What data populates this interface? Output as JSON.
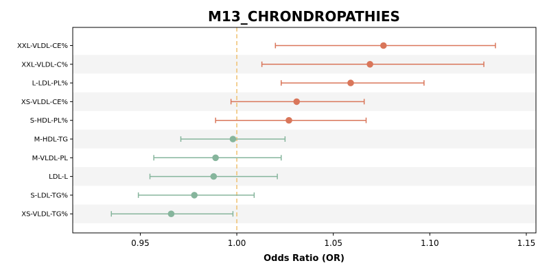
{
  "chart_data": {
    "type": "forest",
    "title": "M13_CHRONDROPATHIES",
    "xlabel": "Odds Ratio (OR)",
    "ylabel": "",
    "xlim": [
      0.915,
      1.155
    ],
    "xticks": [
      "0.95",
      "1.00",
      "1.05",
      "1.10",
      "1.15"
    ],
    "xtick_values": [
      0.95,
      1.0,
      1.05,
      1.1,
      1.15
    ],
    "reference_line": 1.0,
    "reference_color": "#f0c070",
    "colors": {
      "increased": "#d9765a",
      "decreased": "#86b59c",
      "band": "#f4f4f4"
    },
    "grid": false,
    "rows": [
      {
        "label": "XXL-VLDL-CE%",
        "or": 1.076,
        "lower": 1.02,
        "upper": 1.134
      },
      {
        "label": "XXL-VLDL-C%",
        "or": 1.069,
        "lower": 1.013,
        "upper": 1.128
      },
      {
        "label": "L-LDL-PL%",
        "or": 1.059,
        "lower": 1.023,
        "upper": 1.097
      },
      {
        "label": "XS-VLDL-CE%",
        "or": 1.031,
        "lower": 0.997,
        "upper": 1.066
      },
      {
        "label": "S-HDL-PL%",
        "or": 1.027,
        "lower": 0.989,
        "upper": 1.067
      },
      {
        "label": "M-HDL-TG",
        "or": 0.998,
        "lower": 0.971,
        "upper": 1.025
      },
      {
        "label": "M-VLDL-PL",
        "or": 0.989,
        "lower": 0.957,
        "upper": 1.023
      },
      {
        "label": "LDL-L",
        "or": 0.988,
        "lower": 0.955,
        "upper": 1.021
      },
      {
        "label": "S-LDL-TG%",
        "or": 0.978,
        "lower": 0.949,
        "upper": 1.009
      },
      {
        "label": "XS-VLDL-TG%",
        "or": 0.966,
        "lower": 0.935,
        "upper": 0.998
      }
    ]
  }
}
